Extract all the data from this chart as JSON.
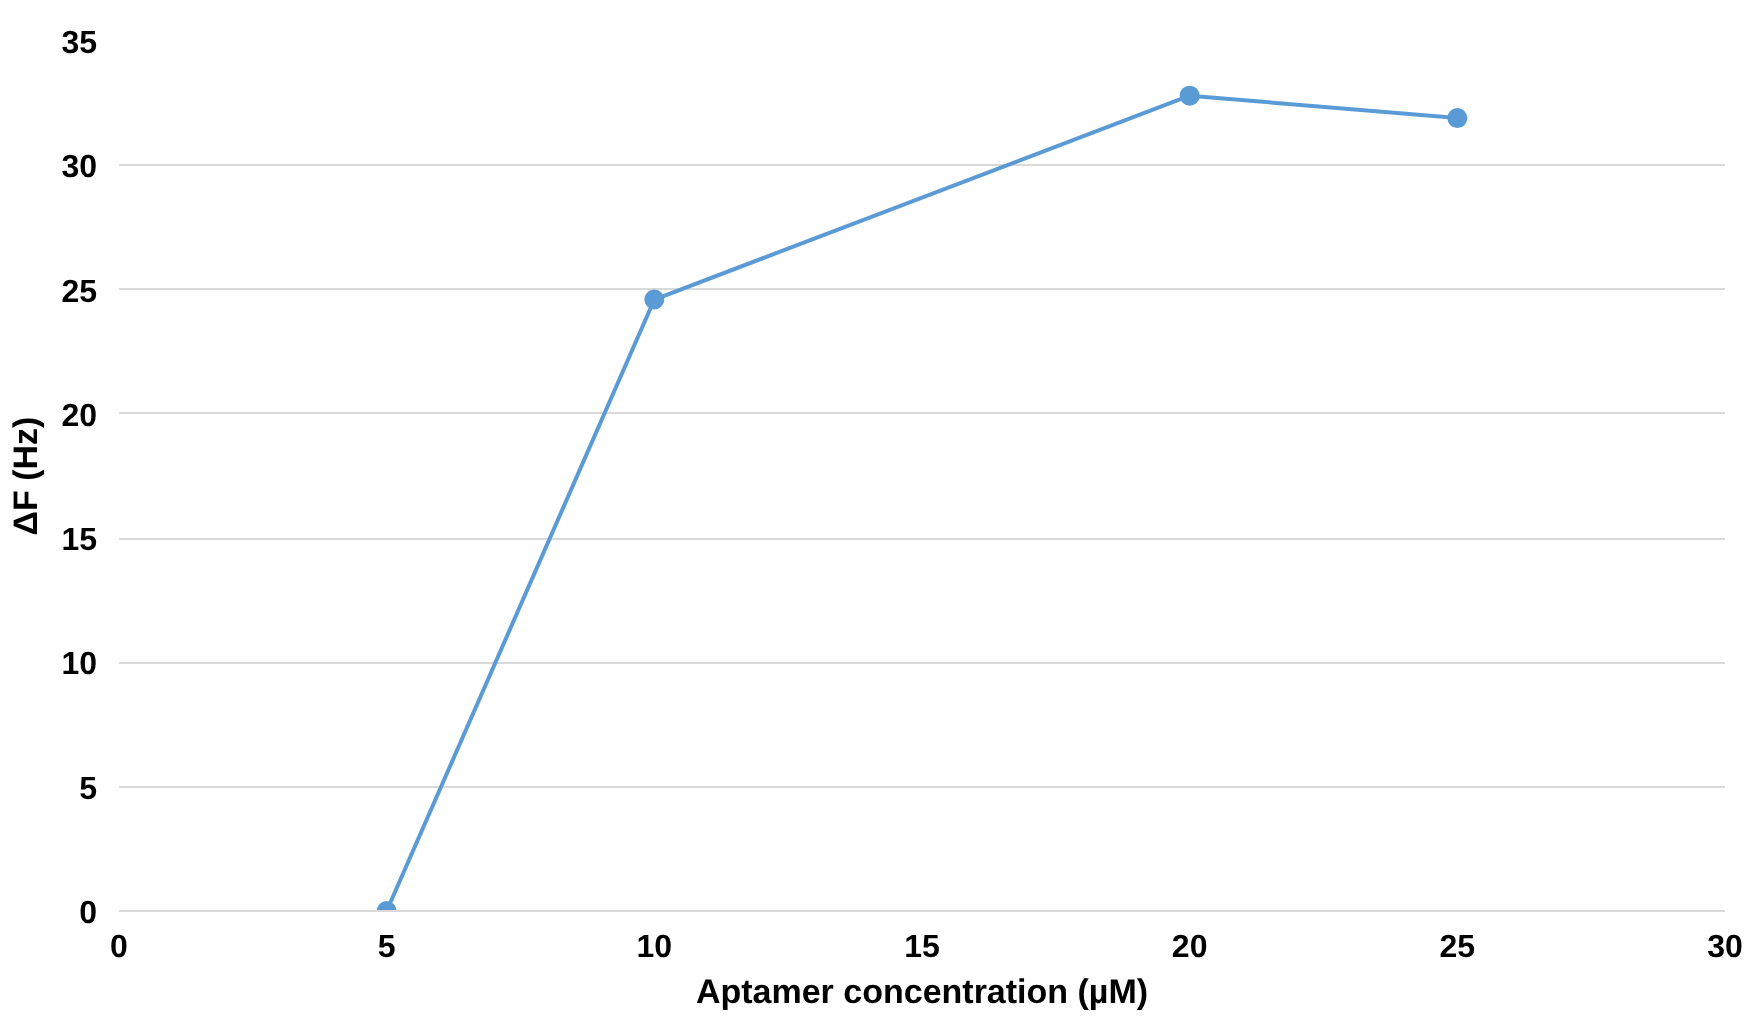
{
  "chart_data": {
    "type": "line",
    "xlabel": "Aptamer concentration (µM)",
    "ylabel": "ΔF (Hz)",
    "x": [
      5,
      10,
      20,
      25
    ],
    "series": [
      {
        "color": "#5b9bd5",
        "values": [
          0,
          24.6,
          32.8,
          31.9
        ]
      }
    ],
    "xlim": [
      0,
      30
    ],
    "xticks": [
      0,
      5,
      10,
      15,
      20,
      25,
      30
    ],
    "ylim": [
      0,
      35
    ],
    "yticks": [
      0,
      5,
      10,
      15,
      20,
      25,
      30,
      35
    ],
    "grid": "y",
    "marker": "circle",
    "line_style": "solid"
  }
}
